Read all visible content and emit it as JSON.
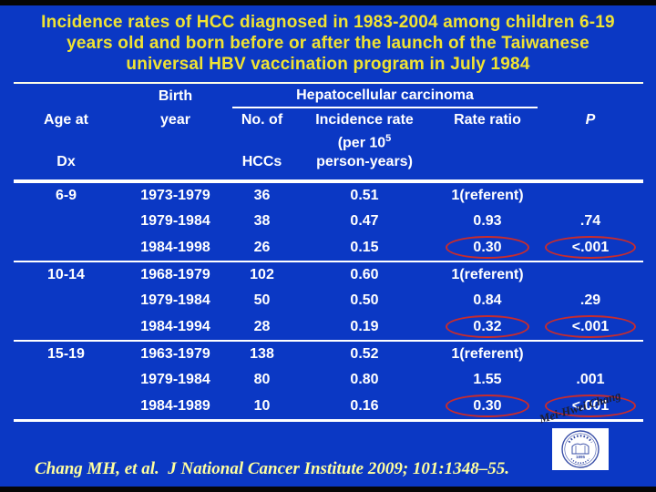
{
  "slide": {
    "title_lines": [
      "Incidence rates of HCC diagnosed in 1983-2004 among children 6-19",
      "years old and born before or after the launch of the Taiwanese",
      "universal HBV vaccination program in July 1984"
    ]
  },
  "table": {
    "group_header": "Hepatocellular carcinoma",
    "headers": {
      "age_l1": "Age at",
      "age_l2": "Dx",
      "birth_l1": "Birth",
      "birth_l2": "year",
      "hcc_l1": "No. of",
      "hcc_l2": "HCCs",
      "rate_l1": "Incidence rate",
      "rate_l2": "(per 10",
      "rate_sup": "5",
      "rate_l3": "person-years)",
      "ratio": "Rate ratio",
      "p": "P"
    },
    "rows": [
      {
        "age": "6-9",
        "birth": "1973-1979",
        "n": "36",
        "rate": "0.51",
        "ratio": "1(referent)",
        "p": "",
        "group_start": true,
        "ratio_circled": false,
        "p_circled": false
      },
      {
        "age": "",
        "birth": "1979-1984",
        "n": "38",
        "rate": "0.47",
        "ratio": "0.93",
        "p": ".74",
        "group_start": false,
        "ratio_circled": false,
        "p_circled": false
      },
      {
        "age": "",
        "birth": "1984-1998",
        "n": "26",
        "rate": "0.15",
        "ratio": "0.30",
        "p": "<.001",
        "group_start": false,
        "ratio_circled": true,
        "p_circled": true
      },
      {
        "age": "10-14",
        "birth": "1968-1979",
        "n": "102",
        "rate": "0.60",
        "ratio": "1(referent)",
        "p": "",
        "group_start": true,
        "ratio_circled": false,
        "p_circled": false
      },
      {
        "age": "",
        "birth": "1979-1984",
        "n": "50",
        "rate": "0.50",
        "ratio": "0.84",
        "p": ".29",
        "group_start": false,
        "ratio_circled": false,
        "p_circled": false
      },
      {
        "age": "",
        "birth": "1984-1994",
        "n": "28",
        "rate": "0.19",
        "ratio": "0.32",
        "p": "<.001",
        "group_start": false,
        "ratio_circled": true,
        "p_circled": true
      },
      {
        "age": "15-19",
        "birth": "1963-1979",
        "n": "138",
        "rate": "0.52",
        "ratio": "1(referent)",
        "p": "",
        "group_start": true,
        "ratio_circled": false,
        "p_circled": false
      },
      {
        "age": "",
        "birth": "1979-1984",
        "n": "80",
        "rate": "0.80",
        "ratio": "1.55",
        "p": ".001",
        "group_start": false,
        "ratio_circled": false,
        "p_circled": false
      },
      {
        "age": "",
        "birth": "1984-1989",
        "n": "10",
        "rate": "0.16",
        "ratio": "0.30",
        "p": "<.001",
        "group_start": false,
        "ratio_circled": true,
        "p_circled": true
      }
    ]
  },
  "footer": {
    "citation": "Chang MH, et al.  J National Cancer Institute 2009; 101:1348–55.",
    "signature": "Mei-Hwei Chang",
    "seal_year": "1895"
  },
  "colors": {
    "background": "#0B38C4",
    "title_yellow": "#F0E332",
    "table_text": "#FFFFFF",
    "rule_white": "#FFFFFF",
    "highlight_red": "#C92C2C",
    "citation_yellow": "#FFFF9E"
  }
}
